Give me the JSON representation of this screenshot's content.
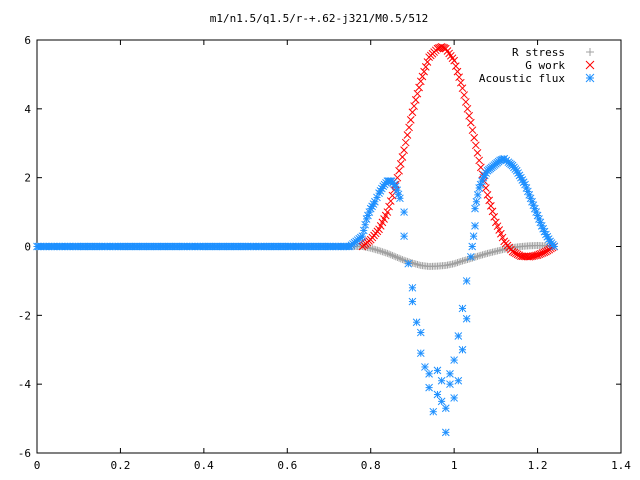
{
  "chart_data": {
    "type": "scatter",
    "title": "m1/n1.5/q1.5/r-+.62-j321/M0.5/512",
    "xlabel": "",
    "ylabel": "",
    "xlim": [
      0,
      1.4
    ],
    "ylim": [
      -6,
      6
    ],
    "x_ticks": [
      0,
      0.2,
      0.4,
      0.6,
      0.8,
      1,
      1.2,
      1.4
    ],
    "x_tick_labels": [
      "0",
      "0.2",
      "0.4",
      "0.6",
      "0.8",
      "1",
      "1.2",
      "1.4"
    ],
    "y_ticks": [
      -6,
      -4,
      -2,
      0,
      2,
      4,
      6
    ],
    "y_tick_labels": [
      "-6",
      "-4",
      "-2",
      "0",
      "2",
      "4",
      "6"
    ],
    "grid": false,
    "legend_position": "top-right",
    "series": [
      {
        "name": "R stress",
        "marker": "plus",
        "color": "#a0a0a0",
        "x": [
          0,
          0.05,
          0.1,
          0.15,
          0.2,
          0.25,
          0.3,
          0.35,
          0.4,
          0.45,
          0.5,
          0.55,
          0.6,
          0.65,
          0.7,
          0.75,
          0.78,
          0.8,
          0.82,
          0.84,
          0.86,
          0.88,
          0.9,
          0.92,
          0.94,
          0.96,
          0.98,
          1.0,
          1.02,
          1.04,
          1.06,
          1.08,
          1.1,
          1.12,
          1.14,
          1.16,
          1.18,
          1.2,
          1.22,
          1.24
        ],
        "y": [
          0,
          0,
          0,
          0,
          0,
          0,
          0,
          0,
          0,
          0,
          0,
          0,
          0,
          0,
          0,
          0,
          0,
          -0.05,
          -0.12,
          -0.2,
          -0.3,
          -0.4,
          -0.48,
          -0.55,
          -0.58,
          -0.57,
          -0.55,
          -0.5,
          -0.42,
          -0.35,
          -0.27,
          -0.2,
          -0.14,
          -0.08,
          -0.03,
          0,
          0.02,
          0.03,
          0.02,
          0
        ]
      },
      {
        "name": "G work",
        "marker": "cross",
        "color": "#ff0000",
        "x": [
          0.78,
          0.8,
          0.82,
          0.84,
          0.86,
          0.88,
          0.9,
          0.92,
          0.94,
          0.96,
          0.97,
          0.98,
          1.0,
          1.02,
          1.04,
          1.06,
          1.08,
          1.1,
          1.12,
          1.14,
          1.16,
          1.18,
          1.2,
          1.22,
          1.24
        ],
        "y": [
          0,
          0.2,
          0.5,
          1.0,
          1.8,
          2.8,
          3.9,
          4.8,
          5.5,
          5.75,
          5.8,
          5.75,
          5.4,
          4.6,
          3.6,
          2.5,
          1.5,
          0.7,
          0.15,
          -0.15,
          -0.28,
          -0.3,
          -0.25,
          -0.15,
          0
        ]
      },
      {
        "name": "Acoustic flux",
        "marker": "star",
        "color": "#1e90ff",
        "x": [
          0,
          0.05,
          0.1,
          0.15,
          0.2,
          0.25,
          0.3,
          0.35,
          0.4,
          0.45,
          0.5,
          0.55,
          0.6,
          0.65,
          0.7,
          0.75,
          0.78,
          0.79,
          0.8,
          0.81,
          0.82,
          0.83,
          0.84,
          0.85,
          0.86,
          0.87,
          0.88,
          0.88,
          0.89,
          0.9,
          0.9,
          0.91,
          0.92,
          0.92,
          0.93,
          0.94,
          0.94,
          0.95,
          0.96,
          0.96,
          0.97,
          0.97,
          0.98,
          0.98,
          0.99,
          0.99,
          1.0,
          1.0,
          1.01,
          1.01,
          1.02,
          1.02,
          1.03,
          1.03,
          1.04,
          1.05,
          1.05,
          1.06,
          1.07,
          1.08,
          1.09,
          1.1,
          1.11,
          1.12,
          1.13,
          1.14,
          1.15,
          1.16,
          1.17,
          1.18,
          1.19,
          1.2,
          1.21,
          1.22,
          1.23,
          1.24
        ],
        "y": [
          0,
          0,
          0,
          0,
          0,
          0,
          0,
          0,
          0,
          0,
          0,
          0,
          0,
          0,
          0,
          0,
          0.3,
          0.8,
          1.1,
          1.3,
          1.55,
          1.75,
          1.9,
          1.9,
          1.75,
          1.4,
          1.0,
          0.3,
          -0.5,
          -1.2,
          -1.6,
          -2.2,
          -2.5,
          -3.1,
          -3.5,
          -4.1,
          -3.7,
          -4.8,
          -4.3,
          -3.6,
          -4.5,
          -3.9,
          -5.4,
          -4.7,
          -4.0,
          -3.7,
          -4.4,
          -3.3,
          -3.9,
          -2.6,
          -3.0,
          -1.8,
          -2.1,
          -1.0,
          -0.3,
          0.6,
          1.1,
          1.7,
          2.0,
          2.2,
          2.3,
          2.4,
          2.5,
          2.55,
          2.45,
          2.35,
          2.2,
          2.0,
          1.8,
          1.5,
          1.2,
          0.9,
          0.6,
          0.35,
          0.15,
          0
        ]
      }
    ]
  }
}
